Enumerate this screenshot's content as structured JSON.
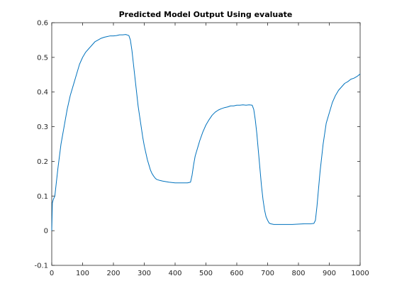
{
  "chart_data": {
    "type": "line",
    "title": "Predicted Model Output Using evaluate",
    "xlabel": "",
    "ylabel": "",
    "xlim": [
      0,
      1000
    ],
    "ylim": [
      -0.1,
      0.6
    ],
    "x_ticks": [
      0,
      100,
      200,
      300,
      400,
      500,
      600,
      700,
      800,
      900,
      1000
    ],
    "y_ticks": [
      -0.1,
      0,
      0.1,
      0.2,
      0.3,
      0.4,
      0.5,
      0.6
    ],
    "x_tick_labels": [
      "0",
      "100",
      "200",
      "300",
      "400",
      "500",
      "600",
      "700",
      "800",
      "900",
      "1000"
    ],
    "y_tick_labels": [
      "-0.1",
      "0",
      "0.1",
      "0.2",
      "0.3",
      "0.4",
      "0.5",
      "0.6"
    ],
    "grid": false,
    "box": true,
    "series": [
      {
        "color": "#0072bd",
        "x": [
          0,
          2,
          5,
          10,
          15,
          20,
          30,
          40,
          50,
          60,
          70,
          80,
          90,
          100,
          110,
          120,
          130,
          140,
          150,
          160,
          170,
          180,
          190,
          200,
          210,
          220,
          230,
          240,
          250,
          255,
          260,
          265,
          270,
          275,
          280,
          285,
          290,
          295,
          300,
          305,
          310,
          315,
          320,
          325,
          330,
          335,
          340,
          350,
          360,
          380,
          400,
          420,
          440,
          450,
          455,
          460,
          465,
          470,
          475,
          480,
          490,
          500,
          510,
          520,
          530,
          540,
          550,
          560,
          570,
          580,
          590,
          600,
          610,
          620,
          630,
          640,
          650,
          655,
          660,
          665,
          670,
          675,
          680,
          685,
          690,
          695,
          700,
          705,
          710,
          720,
          740,
          760,
          780,
          800,
          820,
          840,
          850,
          855,
          860,
          865,
          870,
          875,
          880,
          885,
          890,
          900,
          910,
          920,
          930,
          940,
          950,
          960,
          970,
          980,
          990,
          1000
        ],
        "y": [
          0.0,
          0.08,
          0.09,
          0.1,
          0.14,
          0.18,
          0.25,
          0.3,
          0.35,
          0.39,
          0.42,
          0.45,
          0.48,
          0.5,
          0.515,
          0.525,
          0.535,
          0.545,
          0.55,
          0.555,
          0.558,
          0.56,
          0.562,
          0.562,
          0.563,
          0.565,
          0.565,
          0.566,
          0.563,
          0.55,
          0.52,
          0.48,
          0.44,
          0.4,
          0.36,
          0.33,
          0.3,
          0.27,
          0.245,
          0.225,
          0.205,
          0.19,
          0.175,
          0.165,
          0.158,
          0.152,
          0.148,
          0.145,
          0.143,
          0.14,
          0.138,
          0.138,
          0.138,
          0.14,
          0.16,
          0.19,
          0.215,
          0.23,
          0.245,
          0.26,
          0.285,
          0.305,
          0.32,
          0.333,
          0.342,
          0.348,
          0.352,
          0.355,
          0.357,
          0.36,
          0.36,
          0.362,
          0.362,
          0.363,
          0.362,
          0.363,
          0.362,
          0.35,
          0.32,
          0.28,
          0.23,
          0.18,
          0.13,
          0.09,
          0.06,
          0.04,
          0.03,
          0.022,
          0.02,
          0.018,
          0.018,
          0.018,
          0.018,
          0.019,
          0.02,
          0.02,
          0.021,
          0.03,
          0.07,
          0.12,
          0.17,
          0.21,
          0.25,
          0.28,
          0.31,
          0.34,
          0.37,
          0.39,
          0.405,
          0.415,
          0.425,
          0.43,
          0.437,
          0.44,
          0.445,
          0.452
        ]
      }
    ]
  }
}
